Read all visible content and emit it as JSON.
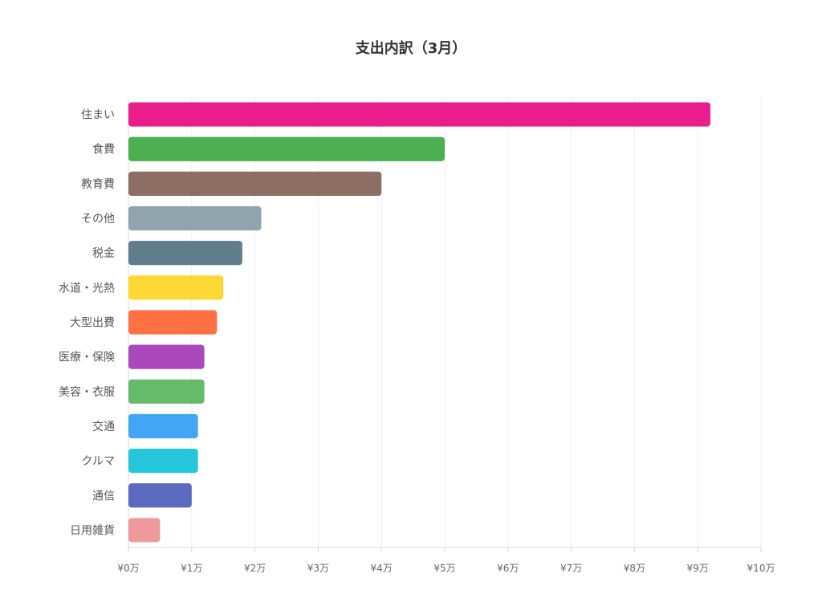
{
  "chart_data": {
    "type": "bar",
    "orientation": "horizontal",
    "title": "支出内訳（3月）",
    "categories": [
      "住まい",
      "食費",
      "教育費",
      "その他",
      "税金",
      "水道・光熱",
      "大型出費",
      "医療・保険",
      "美容・衣服",
      "交通",
      "クルマ",
      "通信",
      "日用雑貨"
    ],
    "values": [
      9.2,
      5.0,
      4.0,
      2.1,
      1.8,
      1.5,
      1.4,
      1.2,
      1.2,
      1.1,
      1.1,
      1.0,
      0.5
    ],
    "colors": [
      "#E91E8C",
      "#4CAF50",
      "#8D6E63",
      "#90A4AE",
      "#607D8B",
      "#FDD835",
      "#FF7043",
      "#AB47BC",
      "#66BB6A",
      "#42A5F5",
      "#26C6DA",
      "#5C6BC0",
      "#EF9A9A"
    ],
    "xlim": [
      0,
      10
    ],
    "x_ticks": [
      0,
      1,
      2,
      3,
      4,
      5,
      6,
      7,
      8,
      9,
      10
    ],
    "x_tick_labels": [
      "¥0万",
      "¥1万",
      "¥2万",
      "¥3万",
      "¥4万",
      "¥5万",
      "¥6万",
      "¥7万",
      "¥8万",
      "¥9万",
      "¥10万"
    ],
    "grid": true,
    "legend": "none"
  }
}
